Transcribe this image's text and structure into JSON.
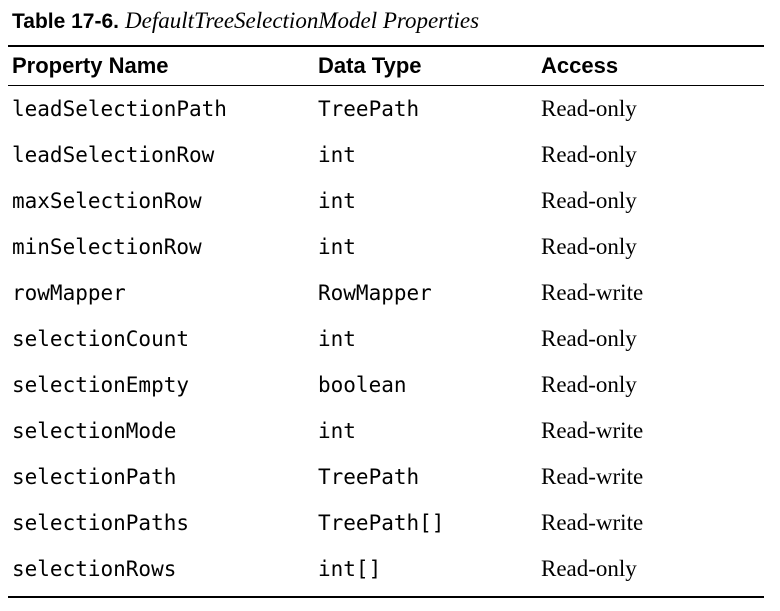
{
  "caption": {
    "label": "Table 17-6.",
    "title": "DefaultTreeSelectionModel Properties"
  },
  "table": {
    "headers": [
      "Property Name",
      "Data Type",
      "Access"
    ],
    "rows": [
      [
        "leadSelectionPath",
        "TreePath",
        "Read-only"
      ],
      [
        "leadSelectionRow",
        "int",
        "Read-only"
      ],
      [
        "maxSelectionRow",
        "int",
        "Read-only"
      ],
      [
        "minSelectionRow",
        "int",
        "Read-only"
      ],
      [
        "rowMapper",
        "RowMapper",
        "Read-write"
      ],
      [
        "selectionCount",
        "int",
        "Read-only"
      ],
      [
        "selectionEmpty",
        "boolean",
        "Read-only"
      ],
      [
        "selectionMode",
        "int",
        "Read-write"
      ],
      [
        "selectionPath",
        "TreePath",
        "Read-write"
      ],
      [
        "selectionPaths",
        "TreePath[]",
        "Read-write"
      ],
      [
        "selectionRows",
        "int[]",
        "Read-only"
      ]
    ]
  }
}
